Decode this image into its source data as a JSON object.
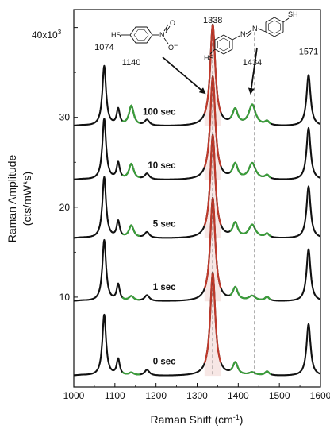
{
  "chart_data": {
    "type": "line",
    "xlabel": "Raman Shift (cm",
    "xlabel_sup": "-1",
    "xlabel_close": ")",
    "ylabel": "Raman Amplitude",
    "ylabel_units": "(cts/mW*s)",
    "y_multiplier": "40x10",
    "y_multiplier_sup": "3",
    "xlim": [
      1000,
      1600
    ],
    "ylim": [
      0,
      42000
    ],
    "xticks": [
      1000,
      1100,
      1200,
      1300,
      1400,
      1500,
      1600
    ],
    "yticks": [
      10000,
      20000,
      30000
    ],
    "ytick_labels": [
      "10",
      "20",
      "30"
    ],
    "grid": false,
    "series": [
      {
        "name": "0 sec",
        "offset": 1200,
        "scale": 1.0,
        "green_amp": 0.07
      },
      {
        "name": "1 sec",
        "offset": 9500,
        "scale": 1.0,
        "green_amp": 0.12
      },
      {
        "name": "5 sec",
        "offset": 16500,
        "scale": 1.0,
        "green_amp": 0.32
      },
      {
        "name": "10 sec",
        "offset": 23000,
        "scale": 1.0,
        "green_amp": 0.4
      },
      {
        "name": "100 sec",
        "offset": 29000,
        "scale": 0.98,
        "green_amp": 0.52
      }
    ],
    "peak_labels": [
      {
        "text": "1074",
        "x": 1074,
        "y": 37500
      },
      {
        "text": "1140",
        "x": 1140,
        "y": 35800
      },
      {
        "text": "1338",
        "x": 1338,
        "y": 40500
      },
      {
        "text": "1434",
        "x": 1434,
        "y": 35800
      },
      {
        "text": "1571",
        "x": 1571,
        "y": 37000
      }
    ],
    "dashed_lines": [
      1338,
      1440
    ],
    "annotations": {
      "molecule_left": {
        "sh": "HS",
        "n": "N",
        "o_top": "O",
        "o_bottom": "O",
        "plus": "+",
        "minus": "−"
      },
      "molecule_right": {
        "sh_left": "HS",
        "sh_right": "SH",
        "n1": "N",
        "n2": "N"
      }
    },
    "colors": {
      "base": "#111111",
      "red": "#c0392b",
      "green": "#3a9e3a"
    }
  }
}
